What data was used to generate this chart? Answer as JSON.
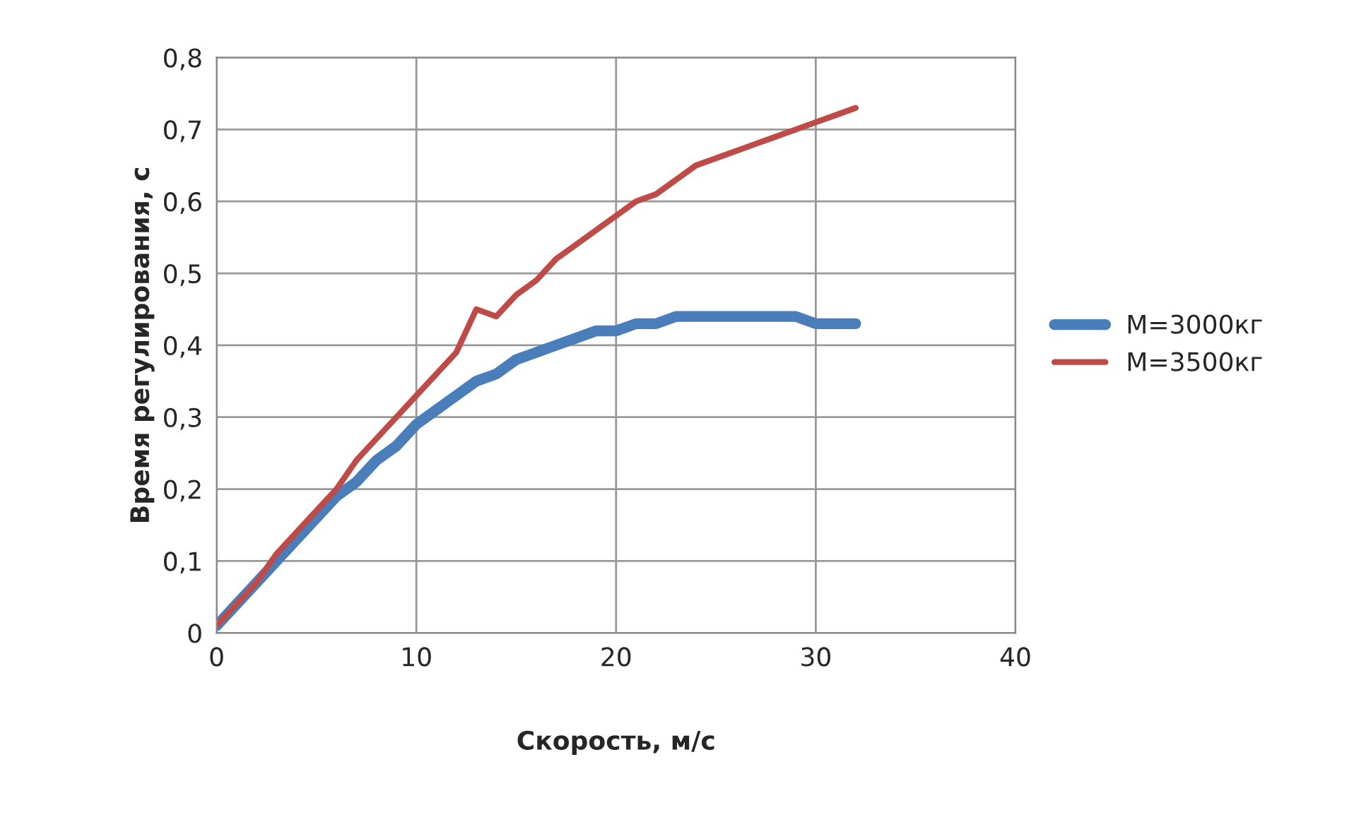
{
  "chart_data": {
    "type": "line",
    "xlabel": "Скорость, м/с",
    "ylabel": "Время регулирования, с",
    "x": [
      0,
      1,
      2,
      3,
      4,
      5,
      6,
      7,
      8,
      9,
      10,
      11,
      12,
      13,
      14,
      15,
      16,
      17,
      18,
      19,
      20,
      21,
      22,
      23,
      24,
      25,
      26,
      27,
      28,
      29,
      30,
      31,
      32
    ],
    "series": [
      {
        "name": "M=3000кг",
        "color": "#4a7ebb",
        "values": [
          0.01,
          0.04,
          0.07,
          0.1,
          0.13,
          0.16,
          0.19,
          0.21,
          0.24,
          0.26,
          0.29,
          0.31,
          0.33,
          0.35,
          0.36,
          0.38,
          0.39,
          0.4,
          0.41,
          0.42,
          0.42,
          0.43,
          0.43,
          0.44,
          0.44,
          0.44,
          0.44,
          0.44,
          0.44,
          0.44,
          0.43,
          0.43,
          0.43
        ]
      },
      {
        "name": "M=3500кг",
        "color": "#be4b48",
        "values": [
          0.01,
          0.04,
          0.07,
          0.11,
          0.14,
          0.17,
          0.2,
          0.24,
          0.27,
          0.3,
          0.33,
          0.36,
          0.39,
          0.45,
          0.44,
          0.47,
          0.49,
          0.52,
          0.54,
          0.56,
          0.58,
          0.6,
          0.61,
          0.63,
          0.65,
          0.66,
          0.67,
          0.68,
          0.69,
          0.7,
          0.71,
          0.72,
          0.73
        ]
      }
    ],
    "xlim": [
      0,
      40
    ],
    "xticks": [
      0,
      10,
      20,
      30,
      40
    ],
    "ylim": [
      0,
      0.8
    ],
    "yticks": [
      {
        "value": 0,
        "label": "0"
      },
      {
        "value": 0.1,
        "label": "0,1"
      },
      {
        "value": 0.2,
        "label": "0,2"
      },
      {
        "value": 0.3,
        "label": "0,3"
      },
      {
        "value": 0.4,
        "label": "0,4"
      },
      {
        "value": 0.5,
        "label": "0,5"
      },
      {
        "value": 0.6,
        "label": "0,6"
      },
      {
        "value": 0.7,
        "label": "0,7"
      },
      {
        "value": 0.8,
        "label": "0,8"
      }
    ],
    "grid": true,
    "legend": "right",
    "marker": "none",
    "line_style": "solid"
  }
}
